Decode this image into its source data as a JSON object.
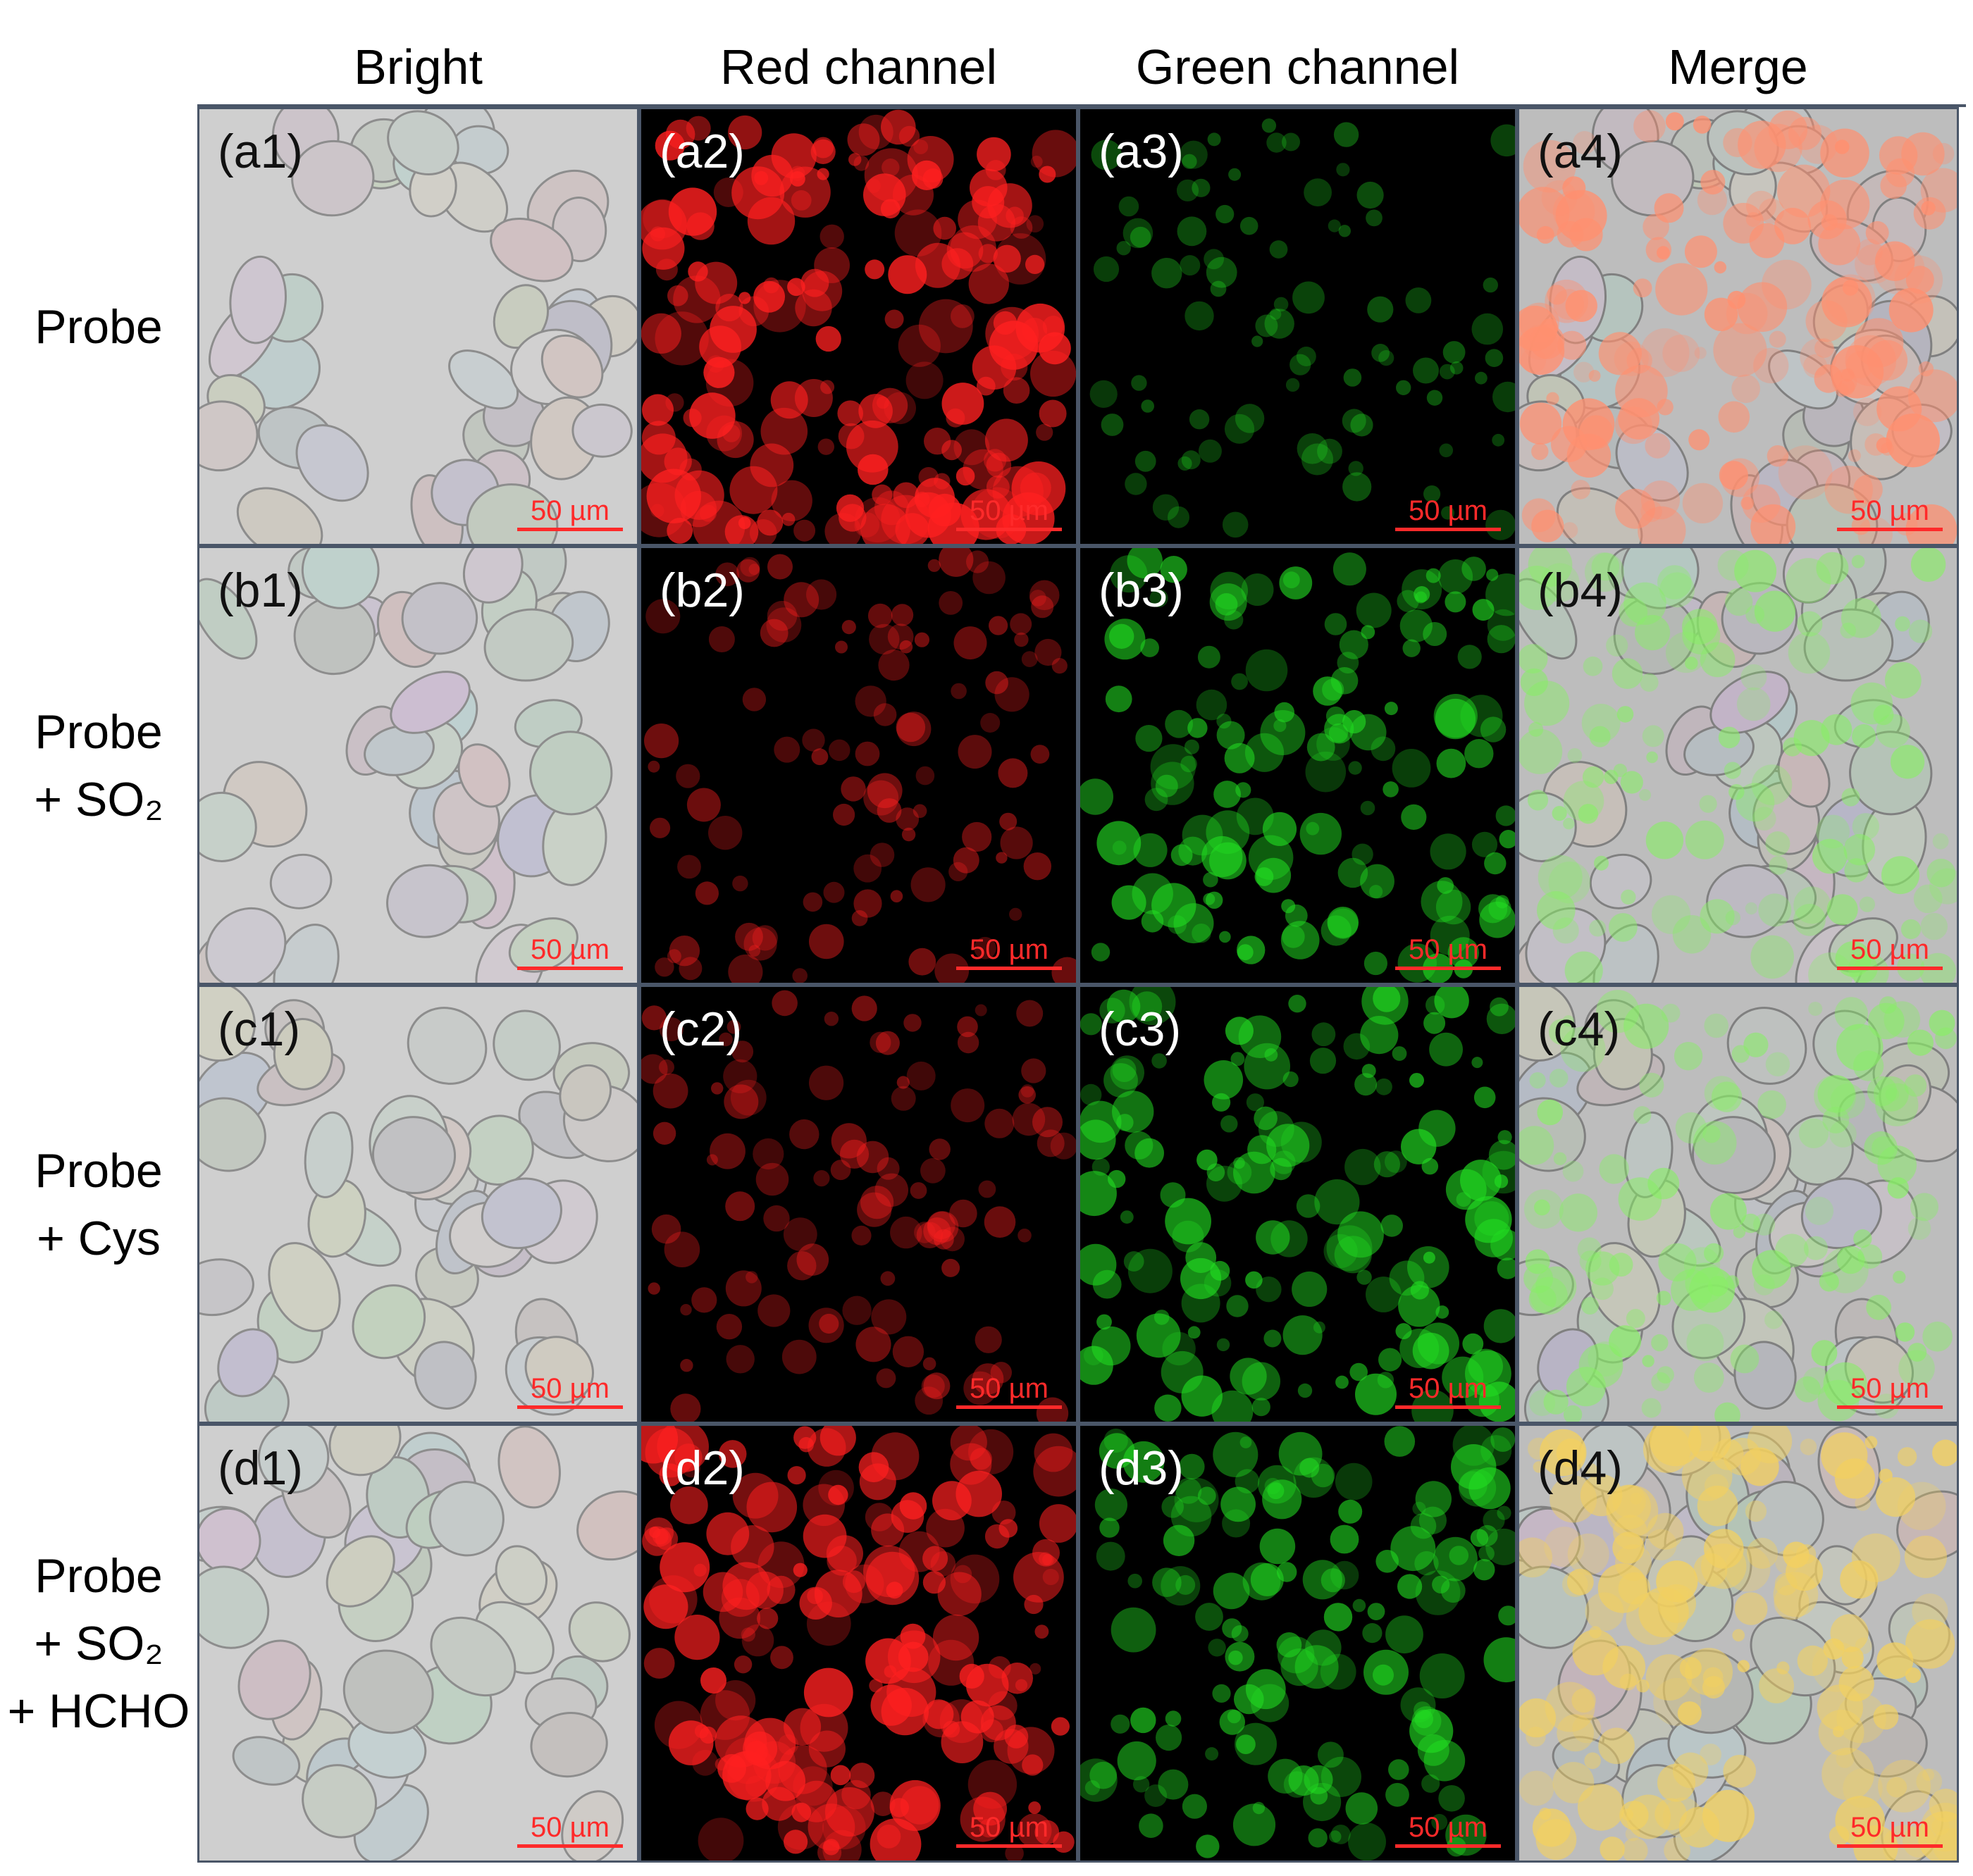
{
  "columns": [
    "Bright",
    "Red channel",
    "Green channel",
    "Merge"
  ],
  "rows": [
    {
      "label_lines": [
        "Probe"
      ],
      "panels": [
        "(a1)",
        "(a2)",
        "(a3)",
        "(a4)"
      ],
      "red_level": 0.9,
      "green_level": 0.18
    },
    {
      "label_lines": [
        "Probe",
        "+ SO₂"
      ],
      "panels": [
        "(b1)",
        "(b2)",
        "(b3)",
        "(b4)"
      ],
      "red_level": 0.3,
      "green_level": 0.6
    },
    {
      "label_lines": [
        "Probe",
        "+ Cys"
      ],
      "panels": [
        "(c1)",
        "(c2)",
        "(c3)",
        "(c4)"
      ],
      "red_level": 0.3,
      "green_level": 0.65
    },
    {
      "label_lines": [
        "Probe",
        "+ SO₂",
        "+ HCHO"
      ],
      "panels": [
        "(d1)",
        "(d2)",
        "(d3)",
        "(d4)"
      ],
      "red_level": 0.85,
      "green_level": 0.6
    }
  ],
  "scale_bar": "50 µm",
  "colors": {
    "red": "#ff2020",
    "green": "#22dd22",
    "bright_bg": "#cfcfcf",
    "scale": "#ff2a2a",
    "border": "#4a5668"
  }
}
